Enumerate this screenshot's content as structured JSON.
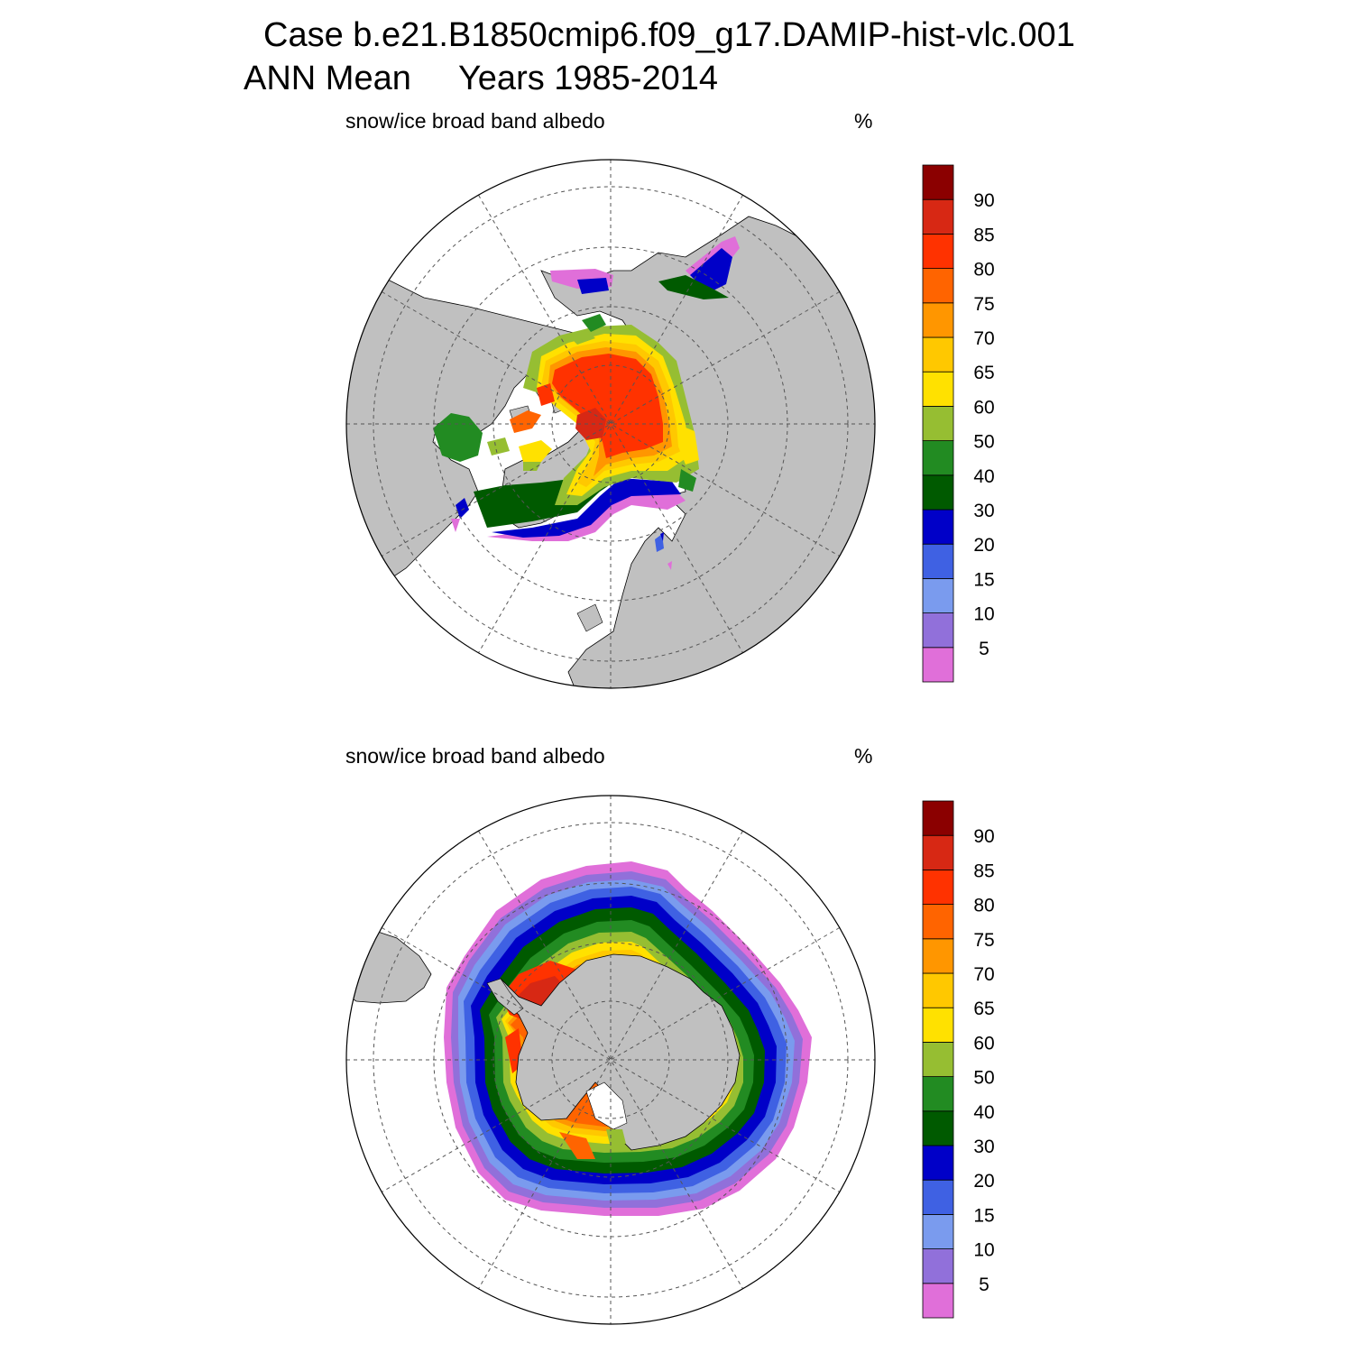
{
  "header": {
    "case_line": "Case b.e21.B1850cmip6.f09_g17.DAMIP-hist-vlc.001",
    "period_line": "ANN Mean     Years 1985-2014"
  },
  "panels": [
    {
      "hemisphere": "north",
      "variable_label": "snow/ice broad band albedo",
      "unit_label": "%"
    },
    {
      "hemisphere": "south",
      "variable_label": "snow/ice broad band albedo",
      "unit_label": "%"
    }
  ],
  "colorbar": {
    "tick_labels": [
      "5",
      "10",
      "15",
      "20",
      "30",
      "40",
      "50",
      "60",
      "65",
      "70",
      "75",
      "80",
      "85",
      "90"
    ],
    "colors": [
      "#e06fd9",
      "#9170da",
      "#7a9bee",
      "#3f61e3",
      "#0000c8",
      "#005a00",
      "#228b22",
      "#96be32",
      "#ffe100",
      "#ffc800",
      "#ff9600",
      "#ff6400",
      "#ff3200",
      "#d72814",
      "#8b0000"
    ]
  },
  "map_colors": {
    "land": "#c0c0c0",
    "ocean": "#ffffff",
    "graticule": "#444444"
  }
}
